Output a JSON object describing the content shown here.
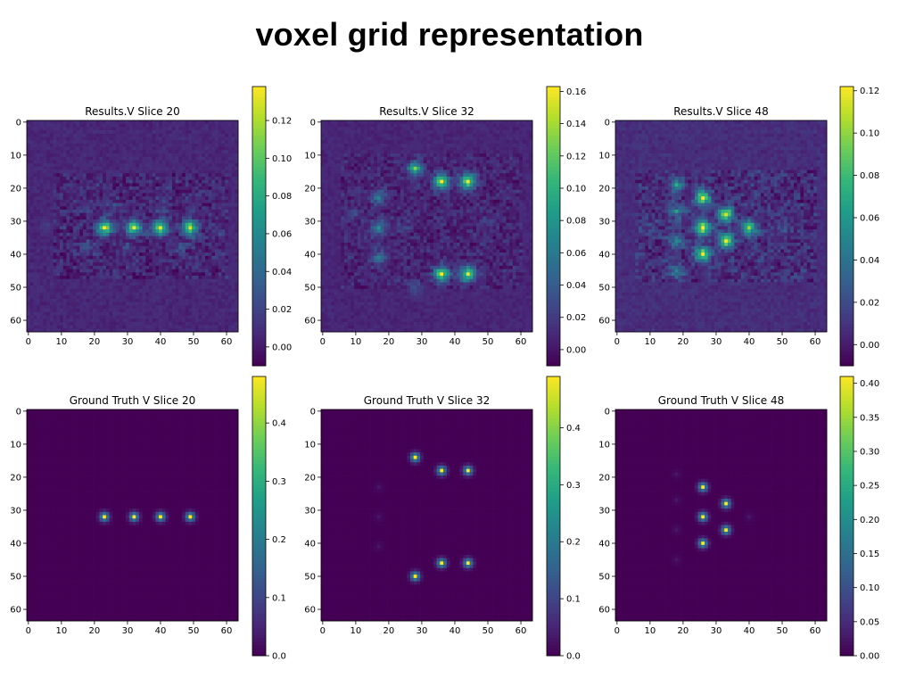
{
  "page": {
    "title": "voxel grid representation"
  },
  "chart_data": [
    {
      "type": "heatmap",
      "title": "Results.V Slice 20",
      "grid_size": 64,
      "x_ticks": [
        0,
        10,
        20,
        30,
        40,
        50,
        60
      ],
      "y_ticks": [
        0,
        10,
        20,
        30,
        40,
        50,
        60
      ],
      "colormap": "viridis",
      "colorbar": {
        "min": -0.01,
        "max": 0.138,
        "ticks": [
          0.0,
          0.02,
          0.04,
          0.06,
          0.08,
          0.1,
          0.12
        ],
        "labels": [
          "0.00",
          "0.02",
          "0.04",
          "0.06",
          "0.08",
          "0.10",
          "0.12"
        ]
      },
      "background": 0.006,
      "noise": {
        "x0": 8,
        "x1": 60,
        "y0": 16,
        "y1": 47
      },
      "peaks": [
        [
          23,
          32,
          0.136
        ],
        [
          32,
          32,
          0.132
        ],
        [
          40,
          32,
          0.13
        ],
        [
          49,
          32,
          0.125
        ]
      ],
      "faint_peaks": [
        [
          18,
          26,
          0.02
        ],
        [
          18,
          38,
          0.022
        ],
        [
          46,
          38,
          0.02
        ],
        [
          30,
          38,
          0.018
        ],
        [
          26,
          26,
          0.018
        ],
        [
          40,
          26,
          0.018
        ],
        [
          6,
          32,
          0.014
        ],
        [
          58,
          32,
          0.014
        ]
      ]
    },
    {
      "type": "heatmap",
      "title": "Results.V Slice 32",
      "grid_size": 64,
      "x_ticks": [
        0,
        10,
        20,
        30,
        40,
        50,
        60
      ],
      "y_ticks": [
        0,
        10,
        20,
        30,
        40,
        50,
        60
      ],
      "colormap": "viridis",
      "colorbar": {
        "min": -0.01,
        "max": 0.163,
        "ticks": [
          0.0,
          0.02,
          0.04,
          0.06,
          0.08,
          0.1,
          0.12,
          0.14,
          0.16
        ],
        "labels": [
          "0.00",
          "0.02",
          "0.04",
          "0.06",
          "0.08",
          "0.10",
          "0.12",
          "0.14",
          "0.16"
        ]
      },
      "background": 0.008,
      "noise": {
        "x0": 6,
        "x1": 60,
        "y0": 10,
        "y1": 50
      },
      "peaks": [
        [
          28,
          14,
          0.11
        ],
        [
          36,
          18,
          0.16
        ],
        [
          44,
          18,
          0.16
        ],
        [
          36,
          46,
          0.15
        ],
        [
          44,
          46,
          0.155
        ]
      ],
      "faint_peaks": [
        [
          17,
          23,
          0.06
        ],
        [
          17,
          32,
          0.065
        ],
        [
          17,
          41,
          0.06
        ],
        [
          28,
          50,
          0.03
        ],
        [
          24,
          32,
          0.02
        ],
        [
          50,
          30,
          0.018
        ],
        [
          10,
          28,
          0.015
        ]
      ]
    },
    {
      "type": "heatmap",
      "title": "Results.V Slice 48",
      "grid_size": 64,
      "x_ticks": [
        0,
        10,
        20,
        30,
        40,
        50,
        60
      ],
      "y_ticks": [
        0,
        10,
        20,
        30,
        40,
        50,
        60
      ],
      "colormap": "viridis",
      "colorbar": {
        "min": -0.01,
        "max": 0.122,
        "ticks": [
          0.0,
          0.02,
          0.04,
          0.06,
          0.08,
          0.1,
          0.12
        ],
        "labels": [
          "0.00",
          "0.02",
          "0.04",
          "0.06",
          "0.08",
          "0.10",
          "0.12"
        ]
      },
      "background": 0.007,
      "noise": {
        "x0": 6,
        "x1": 60,
        "y0": 15,
        "y1": 48
      },
      "peaks": [
        [
          26,
          23,
          0.12
        ],
        [
          26,
          32,
          0.12
        ],
        [
          26,
          40,
          0.12
        ],
        [
          33,
          28,
          0.118
        ],
        [
          33,
          36,
          0.118
        ],
        [
          40,
          32,
          0.1
        ]
      ],
      "faint_peaks": [
        [
          18,
          19,
          0.055
        ],
        [
          18,
          27,
          0.05
        ],
        [
          18,
          36,
          0.05
        ],
        [
          18,
          45,
          0.045
        ],
        [
          10,
          32,
          0.015
        ],
        [
          50,
          32,
          0.015
        ]
      ]
    },
    {
      "type": "heatmap",
      "title": "Ground Truth V Slice 20",
      "grid_size": 64,
      "x_ticks": [
        0,
        10,
        20,
        30,
        40,
        50,
        60
      ],
      "y_ticks": [
        0,
        10,
        20,
        30,
        40,
        50,
        60
      ],
      "colormap": "viridis",
      "colorbar": {
        "min": 0.0,
        "max": 0.48,
        "ticks": [
          0.0,
          0.1,
          0.2,
          0.3,
          0.4
        ],
        "labels": [
          "0.0",
          "0.1",
          "0.2",
          "0.3",
          "0.4"
        ]
      },
      "background": 0.0,
      "peaks": [
        [
          23,
          32,
          0.48
        ],
        [
          32,
          32,
          0.48
        ],
        [
          40,
          32,
          0.48
        ],
        [
          49,
          32,
          0.48
        ]
      ],
      "faint_peaks": []
    },
    {
      "type": "heatmap",
      "title": "Ground Truth V Slice 32",
      "grid_size": 64,
      "x_ticks": [
        0,
        10,
        20,
        30,
        40,
        50,
        60
      ],
      "y_ticks": [
        0,
        10,
        20,
        30,
        40,
        50,
        60
      ],
      "colormap": "viridis",
      "colorbar": {
        "min": 0.0,
        "max": 0.49,
        "ticks": [
          0.0,
          0.1,
          0.2,
          0.3,
          0.4
        ],
        "labels": [
          "0.0",
          "0.1",
          "0.2",
          "0.3",
          "0.4"
        ]
      },
      "background": 0.0,
      "peaks": [
        [
          28,
          14,
          0.49
        ],
        [
          36,
          18,
          0.49
        ],
        [
          44,
          18,
          0.49
        ],
        [
          36,
          46,
          0.49
        ],
        [
          44,
          46,
          0.49
        ],
        [
          28,
          50,
          0.49
        ]
      ],
      "faint_peaks": [
        [
          17,
          23,
          0.03
        ],
        [
          17,
          32,
          0.03
        ],
        [
          17,
          41,
          0.03
        ]
      ]
    },
    {
      "type": "heatmap",
      "title": "Ground Truth V Slice 48",
      "grid_size": 64,
      "x_ticks": [
        0,
        10,
        20,
        30,
        40,
        50,
        60
      ],
      "y_ticks": [
        0,
        10,
        20,
        30,
        40,
        50,
        60
      ],
      "colormap": "viridis",
      "colorbar": {
        "min": 0.0,
        "max": 0.41,
        "ticks": [
          0.0,
          0.05,
          0.1,
          0.15,
          0.2,
          0.25,
          0.3,
          0.35,
          0.4
        ],
        "labels": [
          "0.00",
          "0.05",
          "0.10",
          "0.15",
          "0.20",
          "0.25",
          "0.30",
          "0.35",
          "0.40"
        ]
      },
      "background": 0.0,
      "peaks": [
        [
          26,
          23,
          0.41
        ],
        [
          26,
          32,
          0.41
        ],
        [
          26,
          40,
          0.41
        ],
        [
          33,
          28,
          0.41
        ],
        [
          33,
          36,
          0.41
        ]
      ],
      "faint_peaks": [
        [
          18,
          19,
          0.025
        ],
        [
          18,
          27,
          0.025
        ],
        [
          18,
          36,
          0.025
        ],
        [
          18,
          45,
          0.025
        ],
        [
          40,
          32,
          0.025
        ]
      ]
    }
  ]
}
